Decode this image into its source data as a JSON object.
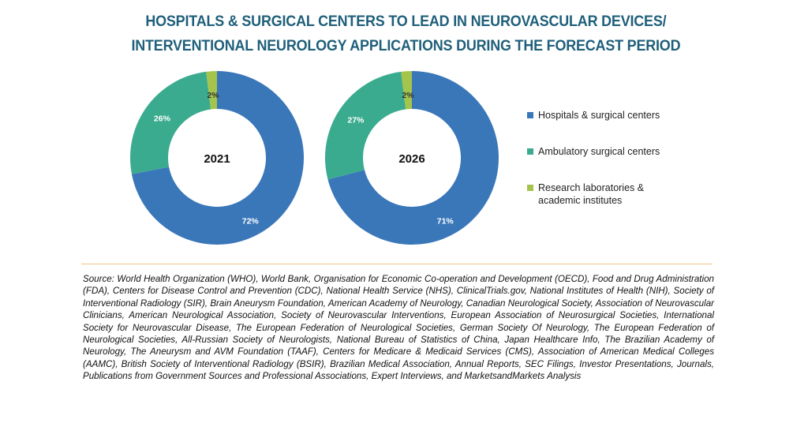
{
  "title": {
    "line1": "HOSPITALS & SURGICAL CENTERS TO LEAD IN NEUROVASCULAR DEVICES/",
    "line2": "INTERVENTIONAL NEUROLOGY APPLICATIONS DURING THE FORECAST PERIOD"
  },
  "chart_data": [
    {
      "type": "pie",
      "subtype": "donut",
      "center_label": "2021",
      "categories": [
        "Hospitals & surgical centers",
        "Ambulatory surgical centers",
        "Research laboratories & academic institutes"
      ],
      "values": [
        72,
        26,
        2
      ],
      "labels": [
        "72%",
        "26%",
        "2%"
      ]
    },
    {
      "type": "pie",
      "subtype": "donut",
      "center_label": "2026",
      "categories": [
        "Hospitals & surgical centers",
        "Ambulatory surgical centers",
        "Research laboratories & academic institutes"
      ],
      "values": [
        71,
        27,
        2
      ],
      "labels": [
        "71%",
        "27%",
        "2%"
      ]
    }
  ],
  "legend": {
    "placement": "right",
    "items": [
      {
        "label": "Hospitals & surgical centers",
        "color": "#3a77b9"
      },
      {
        "label": "Ambulatory surgical centers",
        "color": "#3aab8e"
      },
      {
        "label": "Research laboratories & academic institutes",
        "line1": "Research laboratories &",
        "line2": "academic institutes",
        "color": "#a4c44c"
      }
    ]
  },
  "colors": {
    "hospitals": "#3a77b9",
    "ambulatory": "#3aab8e",
    "research": "#a4c44c",
    "title": "#1f5f7a",
    "rule": "#f0c77e"
  },
  "source": "Source: World Health Organization (WHO), World Bank, Organisation for Economic Co-operation and Development (OECD), Food and Drug Administration (FDA), Centers for Disease Control and Prevention (CDC), National Health Service (NHS), ClinicalTrials.gov, National Institutes of Health (NIH), Society of Interventional Radiology (SIR), Brain Aneurysm Foundation, American Academy of Neurology, Canadian Neurological Society, Association of Neurovascular Clinicians, American Neurological Association, Society of Neurovascular Interventions, European Association of Neurosurgical Societies, International Society for Neurovascular Disease, The European Federation of Neurological Societies, German Society Of Neurology, The European Federation of Neurological Societies, All-Russian Society of Neurologists, National Bureau of Statistics of China, Japan Healthcare Info, The Brazilian Academy of Neurology, The Aneurysm and AVM Foundation (TAAF), Centers for Medicare & Medicaid Services (CMS), Association of American Medical Colleges (AAMC), British Society of Interventional Radiology (BSIR), Brazilian Medical Association, Annual Reports, SEC Filings, Investor Presentations, Journals, Publications from Government Sources and Professional Associations, Expert Interviews, and MarketsandMarkets Analysis"
}
